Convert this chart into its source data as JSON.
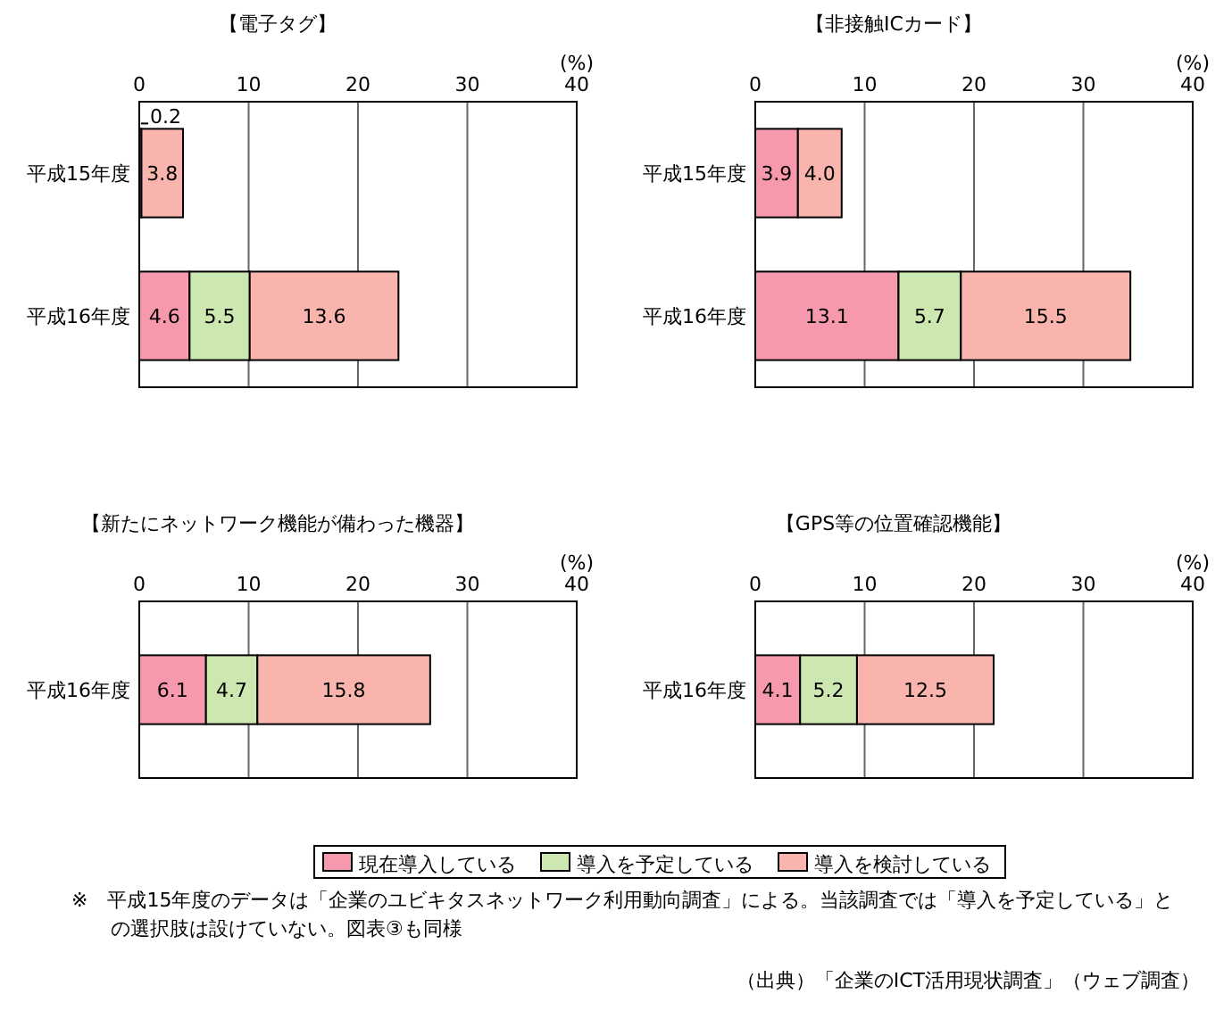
{
  "chart_data": [
    {
      "type": "bar",
      "orientation": "horizontal",
      "stacked": true,
      "title": "【電子タグ】",
      "xlabel": "(%)",
      "categories": [
        "平成15年度",
        "平成16年度"
      ],
      "xlim": [
        0,
        40
      ],
      "xticks": [
        0,
        10,
        20,
        30,
        40
      ],
      "grid": "x",
      "data_labels": true,
      "legend": "bottom",
      "series": [
        {
          "name": "現在導入している",
          "color": "#f799ac",
          "values": [
            0.2,
            4.6
          ]
        },
        {
          "name": "導入を予定している",
          "color": "#cce8b0",
          "values": [
            null,
            5.5
          ]
        },
        {
          "name": "導入を検討している",
          "color": "#f9b4ad",
          "values": [
            3.8,
            13.6
          ]
        }
      ]
    },
    {
      "type": "bar",
      "orientation": "horizontal",
      "stacked": true,
      "title": "【非接触ICカード】",
      "xlabel": "(%)",
      "categories": [
        "平成15年度",
        "平成16年度"
      ],
      "xlim": [
        0,
        40
      ],
      "xticks": [
        0,
        10,
        20,
        30,
        40
      ],
      "grid": "x",
      "series": [
        {
          "color": "#f799ac",
          "values": [
            3.9,
            13.1
          ],
          "value_labels": [
            "3.9",
            "13.1"
          ]
        },
        {
          "color": "#cce8b0",
          "values": [
            null,
            5.7
          ],
          "value_labels": [
            null,
            "5.7"
          ]
        },
        {
          "color": "#f9b4ad",
          "values": [
            4.0,
            15.5
          ],
          "value_labels": [
            "4.0",
            "15.5"
          ]
        }
      ]
    },
    {
      "type": "bar",
      "orientation": "horizontal",
      "stacked": true,
      "title": "【新たにネットワーク機能が備わった機器】",
      "xlabel": "(%)",
      "categories": [
        "平成16年度"
      ],
      "xlim": [
        0,
        40
      ],
      "xticks": [
        0,
        10,
        20,
        30,
        40
      ],
      "grid": "x",
      "data_labels": true,
      "series": [
        {
          "color": "#f799ac",
          "values": [
            6.1
          ]
        },
        {
          "color": "#cce8b0",
          "values": [
            4.7
          ]
        },
        {
          "color": "#f9b4ad",
          "values": [
            15.8
          ]
        }
      ]
    },
    {
      "type": "bar",
      "orientation": "horizontal",
      "stacked": true,
      "title": "【GPS等の位置確認機能】",
      "xlabel": "(%)",
      "categories": [
        "平成16年度"
      ],
      "xlim": [
        0,
        40
      ],
      "xticks": [
        0,
        10,
        20,
        30,
        40
      ],
      "grid": "x",
      "data_labels": true,
      "annotations": [
        "※　平成15年度のデータは「企業のユビキタスネットワーク利用動向調査」による。当該調査では「導入を予定している」との選択肢は設けていない。図表③も同様",
        "（出典）「企業のICT活用現状調査」（ウェブ調査）"
      ],
      "series": [
        {
          "color": "#f799ac",
          "values": [
            4.1
          ]
        },
        {
          "color": "#cce8b0",
          "values": [
            5.2
          ]
        },
        {
          "color": "#f9b4ad",
          "values": [
            12.5
          ]
        }
      ]
    }
  ]
}
